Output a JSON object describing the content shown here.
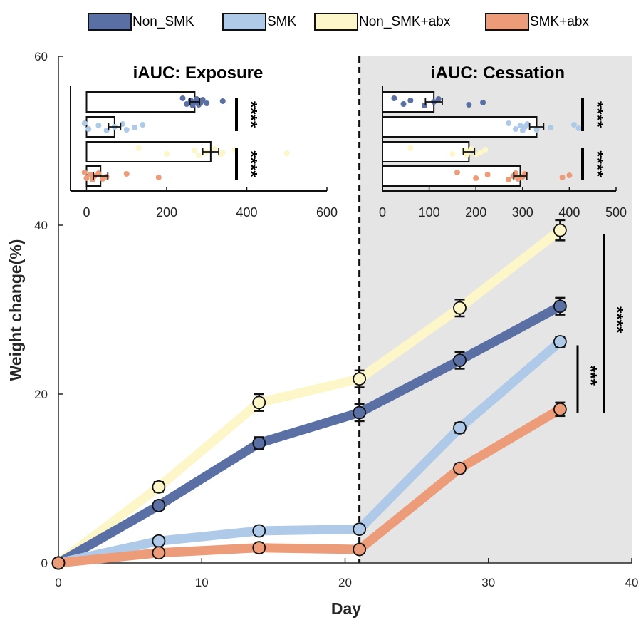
{
  "legend": [
    {
      "label": "Non_SMK",
      "color": "#5a70a4"
    },
    {
      "label": "SMK",
      "color": "#aecae8"
    },
    {
      "label": "Non_SMK+abx",
      "color": "#fcf6c9"
    },
    {
      "label": "SMK+abx",
      "color": "#ec9c79"
    }
  ],
  "colors": {
    "shade": "#e5e5e5",
    "axis": "#262626",
    "marker_edge": "#111111"
  },
  "chart_data": [
    {
      "id": "main",
      "type": "line",
      "xlabel": "Day",
      "ylabel": "Weight change(%)",
      "xlim": [
        0,
        40
      ],
      "ylim": [
        0,
        60
      ],
      "xticks": [
        0,
        10,
        20,
        30,
        40
      ],
      "yticks": [
        0,
        20,
        40,
        60
      ],
      "shaded_from_x": 21,
      "vline_x": 21,
      "x": [
        0,
        7,
        14,
        21,
        28,
        35
      ],
      "series": [
        {
          "name": "Non_SMK+abx",
          "color": "#fcf6c9",
          "values": [
            0,
            9,
            19,
            21.8,
            30.2,
            39.4
          ],
          "errors": [
            0,
            0.6,
            1.0,
            1.0,
            1.0,
            1.2
          ]
        },
        {
          "name": "Non_SMK",
          "color": "#5a70a4",
          "values": [
            0,
            6.8,
            14.2,
            17.8,
            24.0,
            30.4
          ],
          "errors": [
            0,
            0.5,
            0.7,
            1.0,
            1.0,
            1.0
          ]
        },
        {
          "name": "SMK",
          "color": "#aecae8",
          "values": [
            0,
            2.6,
            3.8,
            4.0,
            16.0,
            26.2
          ],
          "errors": [
            0,
            0.5,
            0.5,
            0.5,
            0.6,
            0.6
          ]
        },
        {
          "name": "SMK+abx",
          "color": "#ec9c79",
          "values": [
            0,
            1.2,
            1.8,
            1.6,
            11.2,
            18.2
          ],
          "errors": [
            0,
            0.4,
            0.4,
            0.4,
            0.5,
            0.8
          ]
        }
      ],
      "significance": [
        {
          "text": "***",
          "y_from": 18.2,
          "y_to": 26.2
        },
        {
          "text": "****",
          "y_from": 18.2,
          "y_to": 39.4
        }
      ]
    },
    {
      "id": "inset_exposure",
      "type": "bar",
      "title": "iAUC: Exposure",
      "orientation": "horizontal",
      "xlim": [
        -40,
        600
      ],
      "xticks": [
        0,
        200,
        400,
        600
      ],
      "categories": [
        "Non_SMK",
        "SMK",
        "Non_SMK+abx",
        "SMK+abx"
      ],
      "values": [
        270,
        70,
        310,
        35
      ],
      "errors": [
        12,
        15,
        20,
        18
      ],
      "points": [
        [
          240,
          250,
          260,
          265,
          270,
          275,
          280,
          285,
          290,
          300,
          340
        ],
        [
          -5,
          5,
          30,
          50,
          70,
          90,
          100,
          120,
          140
        ],
        [
          130,
          200,
          270,
          280,
          300,
          320,
          335,
          340,
          370,
          500
        ],
        [
          -5,
          0,
          10,
          15,
          20,
          30,
          40,
          50,
          100,
          180
        ]
      ],
      "significance": [
        {
          "text": "****",
          "rows": [
            0,
            1
          ]
        },
        {
          "text": "****",
          "rows": [
            2,
            3
          ]
        }
      ]
    },
    {
      "id": "inset_cessation",
      "type": "bar",
      "title": "iAUC: Cessation",
      "orientation": "horizontal",
      "xlim": [
        0,
        500
      ],
      "xticks": [
        0,
        100,
        200,
        300,
        400,
        500
      ],
      "categories": [
        "Non_SMK",
        "SMK",
        "Non_SMK+abx",
        "SMK+abx"
      ],
      "values": [
        110,
        330,
        185,
        295
      ],
      "errors": [
        18,
        15,
        12,
        14
      ],
      "points": [
        [
          25,
          45,
          60,
          90,
          110,
          120,
          185,
          215
        ],
        [
          270,
          285,
          295,
          300,
          305,
          310,
          330,
          360,
          410,
          420
        ],
        [
          60,
          150,
          175,
          180,
          185,
          190,
          200,
          210,
          220
        ],
        [
          160,
          200,
          225,
          270,
          280,
          285,
          290,
          300,
          305,
          385,
          400
        ]
      ],
      "significance": [
        {
          "text": "****",
          "rows": [
            0,
            1
          ]
        },
        {
          "text": "****",
          "rows": [
            2,
            3
          ]
        }
      ]
    }
  ]
}
